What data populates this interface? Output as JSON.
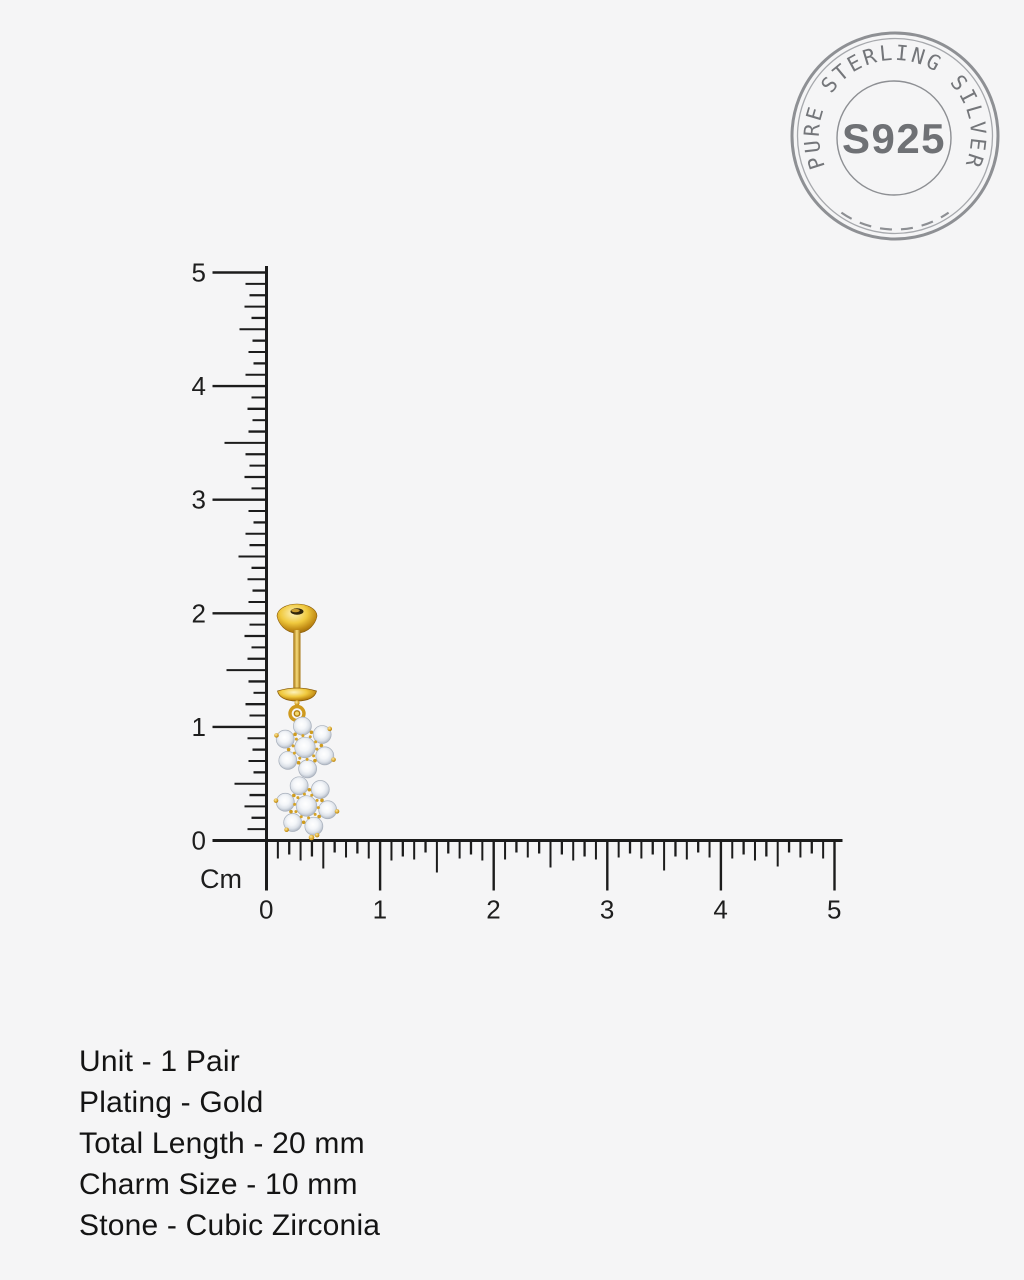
{
  "stamp": {
    "arc_text": "PURE STERLING SILVER",
    "center_text": "S925"
  },
  "ruler": {
    "unit_label": "Cm",
    "min": 0,
    "max": 5,
    "minor_ticks_per_cm": 10,
    "vertical_labels": [
      "5",
      "4",
      "3",
      "2",
      "1",
      "0"
    ],
    "horizontal_labels": [
      "0",
      "1",
      "2",
      "3",
      "4",
      "5"
    ]
  },
  "specs": {
    "lines": [
      "Unit - 1 Pair",
      "Plating - Gold",
      "Total Length - 20 mm",
      "Charm Size - 10 mm",
      "Stone - Cubic Zirconia"
    ]
  },
  "colors": {
    "background": "#f5f5f6",
    "ink": "#1c1c1c",
    "stamp_gray": "#8e9094",
    "stamp_text": "#6f7175",
    "gold": "#d9a625",
    "stone_white": "#eef1f5",
    "text": "#141414"
  }
}
